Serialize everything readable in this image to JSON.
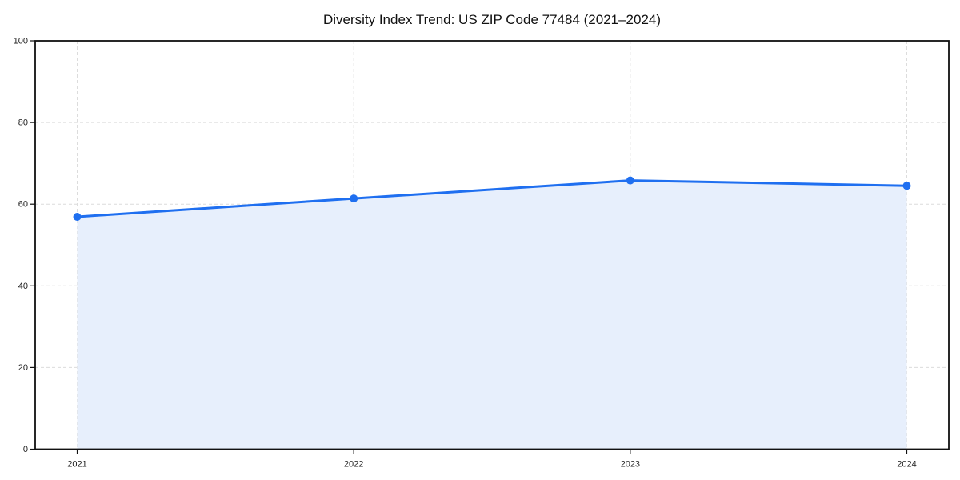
{
  "chart_data": {
    "type": "area",
    "title": "Diversity Index Trend: US ZIP Code 77484 (2021–2024)",
    "x": [
      2021,
      2022,
      2023,
      2024
    ],
    "xticklabels": [
      "2021",
      "2022",
      "2023",
      "2024"
    ],
    "series": [
      {
        "name": "Diversity Index",
        "values": [
          56.9,
          61.4,
          65.8,
          64.5
        ]
      }
    ],
    "xlabel": "",
    "ylabel": "",
    "ylim": [
      0,
      100
    ],
    "yticks": [
      0,
      20,
      40,
      60,
      80,
      100
    ],
    "grid": true,
    "grid_style": "dashed",
    "legend": false,
    "colors": {
      "line": "#1f6ff0",
      "marker": "#1f6ff0",
      "fill": "#e7effc",
      "grid": "#dcdcdc",
      "spine": "#111111",
      "tick": "#111111",
      "tick_label": "#222222",
      "title": "#111111",
      "background": "#ffffff"
    }
  }
}
